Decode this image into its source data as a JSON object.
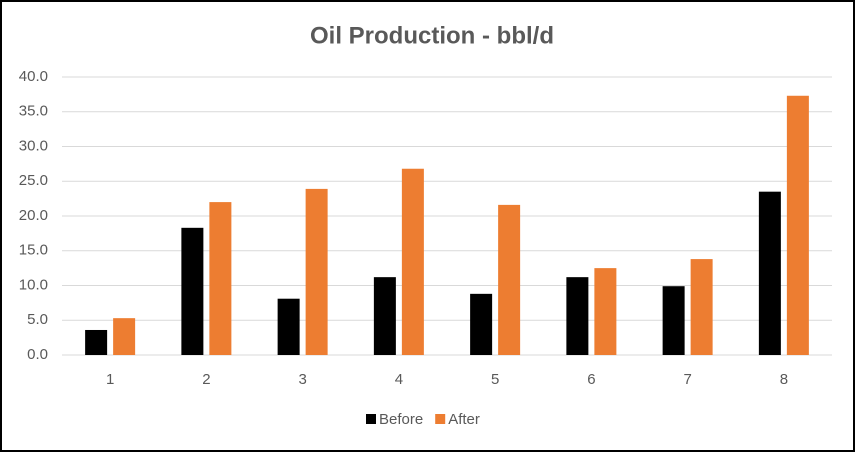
{
  "chart_data": {
    "type": "bar",
    "title": "Oil Production - bbl/d",
    "categories": [
      "1",
      "2",
      "3",
      "4",
      "5",
      "6",
      "7",
      "8"
    ],
    "series": [
      {
        "name": "Before",
        "color": "#000000",
        "values": [
          3.6,
          18.3,
          8.1,
          11.2,
          8.8,
          11.2,
          9.9,
          23.5
        ]
      },
      {
        "name": "After",
        "color": "#ed7d31",
        "values": [
          5.3,
          22.0,
          23.9,
          26.8,
          21.6,
          12.5,
          13.8,
          37.3
        ]
      }
    ],
    "ylim": [
      0,
      40
    ],
    "yticks": [
      {
        "value": 0,
        "label": "0.0"
      },
      {
        "value": 5,
        "label": "5.0"
      },
      {
        "value": 10,
        "label": "10.0"
      },
      {
        "value": 15,
        "label": "15.0"
      },
      {
        "value": 20,
        "label": "20.0"
      },
      {
        "value": 25,
        "label": "25.0"
      },
      {
        "value": 30,
        "label": "30.0"
      },
      {
        "value": 35,
        "label": "35.0"
      },
      {
        "value": 40,
        "label": "40.0"
      }
    ],
    "grid": true,
    "legend": "bottom"
  }
}
